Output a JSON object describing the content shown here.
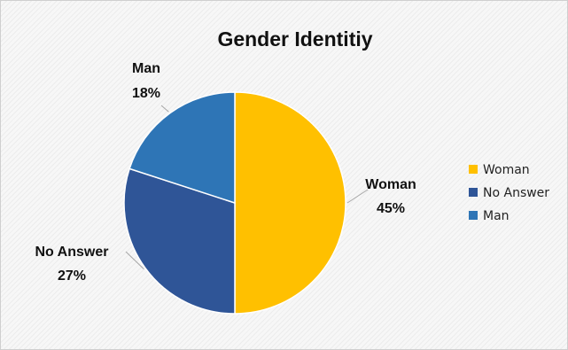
{
  "chart_data": {
    "type": "pie",
    "title": "Gender Identitiy",
    "slices": [
      {
        "label": "Woman",
        "value": 45,
        "display": "45%",
        "color": "#FFC000"
      },
      {
        "label": "No Answer",
        "value": 27,
        "display": "27%",
        "color": "#2F5597"
      },
      {
        "label": "Man",
        "value": 18,
        "display": "18%",
        "color": "#2E75B6"
      }
    ],
    "legend": {
      "position": "right",
      "items": [
        "Woman",
        "No Answer",
        "Man"
      ]
    }
  }
}
